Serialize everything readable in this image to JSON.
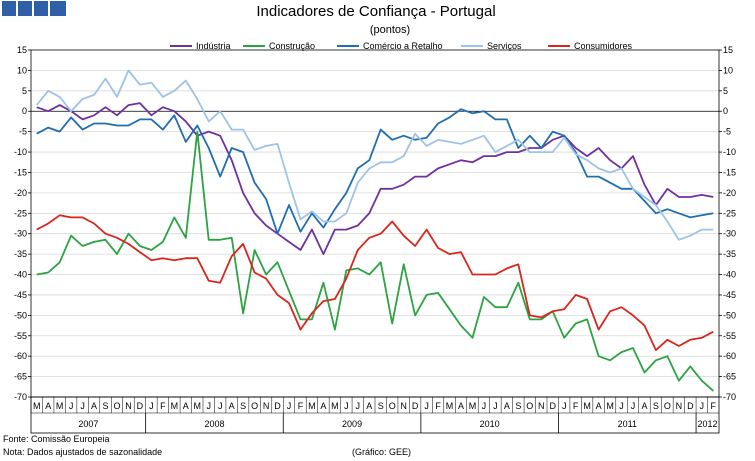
{
  "logo": {
    "colors": [
      "#2f5fa9",
      "#2f5fa9",
      "#2f5fa9",
      "#2f5fa9"
    ]
  },
  "chart_data": {
    "type": "line",
    "title": "Indicadores de Confiança - Portugal",
    "subtitle": "(pontos)",
    "ylim": [
      -70,
      15
    ],
    "yticks": [
      15,
      10,
      5,
      0,
      -5,
      -10,
      -15,
      -20,
      -25,
      -30,
      -35,
      -40,
      -45,
      -50,
      -55,
      -60,
      -65,
      -70
    ],
    "month_labels": [
      "M",
      "A",
      "M",
      "J",
      "J",
      "A",
      "S",
      "O",
      "N",
      "D",
      "J",
      "F",
      "M",
      "A",
      "M",
      "J",
      "J",
      "A",
      "S",
      "O",
      "N",
      "D",
      "J",
      "F",
      "M",
      "A",
      "M",
      "J",
      "J",
      "A",
      "S",
      "O",
      "N",
      "D",
      "J",
      "F",
      "M",
      "A",
      "M",
      "J",
      "J",
      "A",
      "S",
      "O",
      "N",
      "D",
      "J",
      "F",
      "M",
      "A",
      "M",
      "J",
      "J",
      "A",
      "S",
      "O",
      "N",
      "D",
      "J",
      "F"
    ],
    "years": [
      {
        "label": "2007",
        "start": 0,
        "end": 10
      },
      {
        "label": "2008",
        "start": 10,
        "end": 22
      },
      {
        "label": "2009",
        "start": 22,
        "end": 34
      },
      {
        "label": "2010",
        "start": 34,
        "end": 46
      },
      {
        "label": "2011",
        "start": 46,
        "end": 58
      },
      {
        "label": "2012",
        "start": 58,
        "end": 60
      }
    ],
    "series": [
      {
        "name": "Indústria",
        "color": "#7030a0",
        "values": [
          1,
          0,
          1.5,
          0,
          -2,
          -1,
          1,
          -1,
          1.5,
          2,
          -1,
          1,
          0,
          -2.5,
          -6,
          -5,
          -6,
          -12,
          -20,
          -25,
          -28,
          -30,
          -32,
          -34,
          -29,
          -35,
          -29,
          -29,
          -28,
          -25,
          -19,
          -19,
          -18,
          -16,
          -16,
          -14,
          -13,
          -12,
          -12.5,
          -11,
          -11,
          -10,
          -10,
          -9,
          -9,
          -7,
          -6,
          -9,
          -11,
          -9,
          -12,
          -14,
          -11,
          -18,
          -23,
          -19,
          -21,
          -21,
          -20.5,
          -21
        ]
      },
      {
        "name": "Construção",
        "color": "#2ca342",
        "values": [
          -40,
          -39.5,
          -37,
          -30.5,
          -33,
          -32,
          -31.5,
          -35,
          -30,
          -33,
          -34,
          -32,
          -26,
          -31,
          -5,
          -31.5,
          -31.5,
          -31,
          -49.5,
          -34,
          -40,
          -37,
          -44,
          -51,
          -51,
          -42,
          -53.5,
          -39,
          -38.5,
          -40,
          -37,
          -52,
          -37.5,
          -50,
          -45,
          -44.5,
          -48.5,
          -52.5,
          -55.5,
          -45.5,
          -48,
          -48,
          -42,
          -51,
          -51,
          -49,
          -55.5,
          -52,
          -51,
          -60,
          -61,
          -59,
          -58,
          -64,
          -61,
          -60,
          -66,
          -62.5,
          -66,
          -68.5
        ]
      },
      {
        "name": "Comércio a Retalho",
        "color": "#1f6eb0",
        "values": [
          -5.5,
          -4,
          -5,
          -1.5,
          -4.5,
          -3,
          -3,
          -3.5,
          -3.5,
          -2,
          -2,
          -4.5,
          -1,
          -7.5,
          -3.5,
          -9,
          -16,
          -9,
          -10,
          -17.5,
          -21.5,
          -30,
          -23,
          -29.5,
          -25,
          -28.5,
          -24,
          -20,
          -14,
          -12,
          -4.5,
          -7,
          -6,
          -7,
          -6.5,
          -3,
          -1.5,
          0.5,
          -0.5,
          0,
          -2,
          -2,
          -9,
          -6,
          -9,
          -5,
          -6,
          -10,
          -16,
          -16,
          -17.5,
          -19,
          -19,
          -22,
          -25,
          -24,
          -25,
          -26,
          -25.5,
          -25
        ]
      },
      {
        "name": "Serviços",
        "color": "#9dc3e6",
        "values": [
          1.5,
          5,
          3.5,
          0,
          3,
          4,
          8,
          3.5,
          10,
          6.5,
          7,
          3.5,
          5,
          7.5,
          3,
          -2.5,
          0,
          -4.5,
          -4.5,
          -9.5,
          -8.5,
          -8,
          -17.5,
          -26.5,
          -24.5,
          -27,
          -27,
          -25,
          -17.5,
          -14,
          -12.5,
          -12.5,
          -11,
          -5.5,
          -8.5,
          -7,
          -7.5,
          -8,
          -7,
          -6,
          -10,
          -8.5,
          -7,
          -10,
          -10,
          -10,
          -6.5,
          -10.5,
          -12,
          -14,
          -15,
          -14,
          -19,
          -21,
          -23,
          -27,
          -31.5,
          -30.5,
          -29,
          -29
        ]
      },
      {
        "name": "Consumidores",
        "color": "#d9261c",
        "values": [
          -29,
          -27.5,
          -25.5,
          -26,
          -26,
          -27.5,
          -30,
          -31,
          -32.5,
          -34.5,
          -36.5,
          -36,
          -36.5,
          -36,
          -36,
          -41.5,
          -42,
          -35.5,
          -32.5,
          -39.5,
          -41,
          -45,
          -47,
          -53.5,
          -49.5,
          -46.5,
          -46,
          -41,
          -34,
          -31,
          -30,
          -27,
          -30.5,
          -33,
          -29,
          -33.5,
          -35,
          -34.5,
          -40,
          -40,
          -40,
          -38.5,
          -37.5,
          -50,
          -50.5,
          -49,
          -48.5,
          -45,
          -46,
          -53.5,
          -49,
          -48,
          -50,
          -52.5,
          -58.5,
          -56,
          -57.5,
          -56,
          -55.5,
          -54
        ]
      }
    ]
  },
  "footer": {
    "source": "Fonte: Comissão Europeia",
    "note": "Nota: Dados ajustados de sazonalidade",
    "credit": "(Gráfico: GEE)"
  }
}
